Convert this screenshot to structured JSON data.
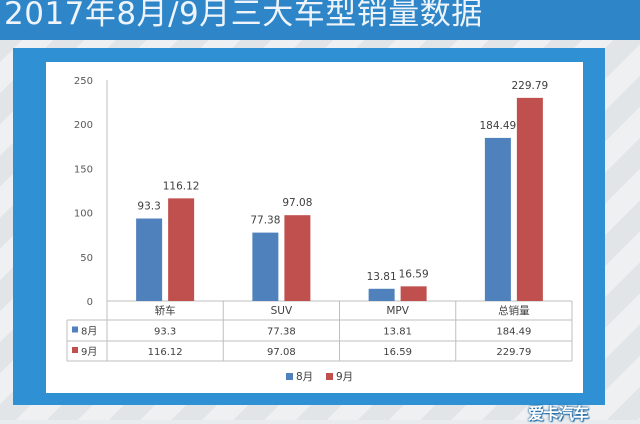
{
  "title": "2017年8月/9月三大车型销量数据",
  "watermark": "爱卡汽车",
  "colors": {
    "series_aug": "#4f81bd",
    "series_sep": "#c0504d",
    "frame": "#2f91d3",
    "header": "#2e86c8"
  },
  "chart_data": {
    "type": "bar",
    "title": "2017年8月/9月三大车型销量数据",
    "categories": [
      "轿车",
      "SUV",
      "MPV",
      "总销量"
    ],
    "series": [
      {
        "name": "8月",
        "values": [
          93.3,
          77.38,
          13.81,
          184.49
        ],
        "labels": [
          "93.3",
          "77.38",
          "13.81",
          "184.49"
        ]
      },
      {
        "name": "9月",
        "values": [
          116.12,
          97.08,
          16.59,
          229.79
        ],
        "labels": [
          "116.12",
          "97.08",
          "16.59",
          "229.79"
        ]
      }
    ],
    "ylim": [
      0,
      250
    ],
    "yticks": [
      "0",
      "50",
      "100",
      "150",
      "200",
      "250"
    ],
    "xlabel": "",
    "ylabel": "",
    "legend": "bottom",
    "grid": false,
    "data_table": true
  }
}
